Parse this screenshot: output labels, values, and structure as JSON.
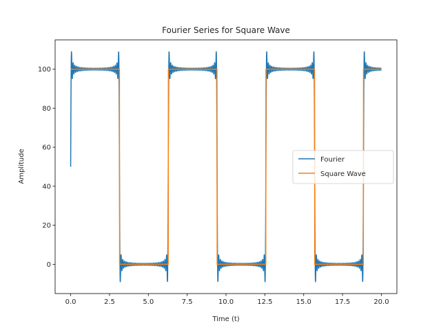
{
  "chart_data": {
    "type": "line",
    "title": "Fourier Series for Square Wave",
    "xlabel": "Time (t)",
    "ylabel": "Amplitude",
    "xlim": [
      -1.0,
      21.0
    ],
    "ylim": [
      -15,
      115
    ],
    "xticks": [
      0.0,
      2.5,
      5.0,
      7.5,
      10.0,
      12.5,
      15.0,
      17.5,
      20.0
    ],
    "xtick_labels": [
      "0.0",
      "2.5",
      "5.0",
      "7.5",
      "10.0",
      "12.5",
      "15.0",
      "17.5",
      "20.0"
    ],
    "yticks": [
      0,
      20,
      40,
      60,
      80,
      100
    ],
    "ytick_labels": [
      "0",
      "20",
      "40",
      "60",
      "80",
      "100"
    ],
    "grid": false,
    "legend_position": "center-right",
    "x_range": [
      0,
      20
    ],
    "period": 6.283,
    "square_high": 100,
    "square_low": 0,
    "fourier_harmonics": 59,
    "series": [
      {
        "name": "Fourier",
        "color": "#1f77b4",
        "kind": "fourier_partial_sum"
      },
      {
        "name": "Square Wave",
        "color": "#ff7f0e",
        "kind": "square_wave"
      }
    ]
  }
}
